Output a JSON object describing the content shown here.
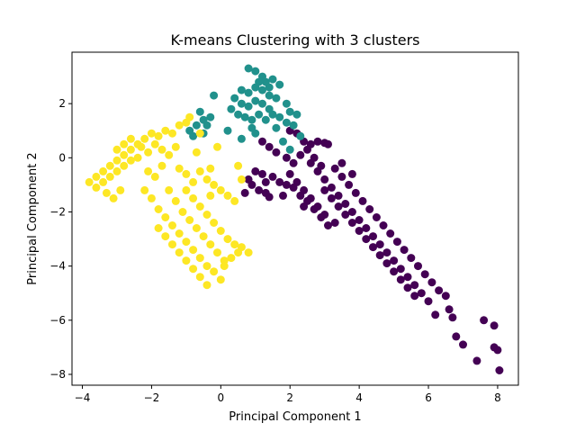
{
  "chart_data": {
    "type": "scatter",
    "title": "K-means Clustering with 3 clusters",
    "xlabel": "Principal Component 1",
    "ylabel": "Principal Component 2",
    "xlim": [
      -4.3,
      8.6
    ],
    "ylim": [
      -8.4,
      3.9
    ],
    "xticks": [
      -4,
      -2,
      0,
      2,
      4,
      6,
      8
    ],
    "yticks": [
      -8,
      -6,
      -4,
      -2,
      0,
      2
    ],
    "grid": false,
    "legend": "none",
    "series": [
      {
        "color": "#440154",
        "points": [
          [
            2.0,
            1.0
          ],
          [
            2.2,
            0.9
          ],
          [
            2.4,
            0.6
          ],
          [
            2.6,
            0.5
          ],
          [
            2.8,
            0.6
          ],
          [
            3.0,
            0.55
          ],
          [
            3.1,
            0.5
          ],
          [
            1.2,
            0.6
          ],
          [
            1.4,
            0.4
          ],
          [
            1.6,
            0.2
          ],
          [
            1.9,
            0.0
          ],
          [
            2.1,
            -0.2
          ],
          [
            2.3,
            0.1
          ],
          [
            1.0,
            -0.5
          ],
          [
            1.2,
            -0.6
          ],
          [
            1.5,
            -0.7
          ],
          [
            1.7,
            -0.9
          ],
          [
            1.9,
            -1.0
          ],
          [
            1.3,
            -0.9
          ],
          [
            0.8,
            -0.8
          ],
          [
            0.9,
            -1.0
          ],
          [
            1.1,
            -1.2
          ],
          [
            1.3,
            -1.3
          ],
          [
            1.4,
            -1.45
          ],
          [
            0.7,
            -1.3
          ],
          [
            2.0,
            -0.6
          ],
          [
            2.2,
            -0.9
          ],
          [
            2.4,
            -1.2
          ],
          [
            2.6,
            -1.5
          ],
          [
            2.8,
            -1.8
          ],
          [
            3.0,
            -2.1
          ],
          [
            2.3,
            -1.4
          ],
          [
            2.5,
            -1.6
          ],
          [
            2.7,
            -1.9
          ],
          [
            2.9,
            -2.2
          ],
          [
            3.1,
            -2.5
          ],
          [
            3.3,
            -2.4
          ],
          [
            2.6,
            -0.2
          ],
          [
            2.8,
            -0.5
          ],
          [
            3.0,
            -0.8
          ],
          [
            3.2,
            -1.1
          ],
          [
            3.4,
            -1.4
          ],
          [
            3.6,
            -1.7
          ],
          [
            3.8,
            -2.0
          ],
          [
            4.0,
            -2.3
          ],
          [
            4.2,
            -2.6
          ],
          [
            4.4,
            -2.9
          ],
          [
            4.6,
            -3.2
          ],
          [
            4.8,
            -3.5
          ],
          [
            5.0,
            -3.8
          ],
          [
            5.2,
            -4.1
          ],
          [
            5.4,
            -4.4
          ],
          [
            5.6,
            -4.7
          ],
          [
            5.8,
            -5.0
          ],
          [
            6.0,
            -5.3
          ],
          [
            3.3,
            -0.4
          ],
          [
            3.5,
            -0.7
          ],
          [
            3.7,
            -1.0
          ],
          [
            3.9,
            -1.3
          ],
          [
            4.1,
            -1.6
          ],
          [
            4.3,
            -1.9
          ],
          [
            4.5,
            -2.2
          ],
          [
            4.7,
            -2.5
          ],
          [
            4.9,
            -2.8
          ],
          [
            5.1,
            -3.1
          ],
          [
            5.3,
            -3.4
          ],
          [
            5.5,
            -3.7
          ],
          [
            5.7,
            -4.0
          ],
          [
            5.9,
            -4.3
          ],
          [
            6.1,
            -4.6
          ],
          [
            6.3,
            -4.9
          ],
          [
            6.5,
            -5.1
          ],
          [
            3.0,
            -1.2
          ],
          [
            3.2,
            -1.5
          ],
          [
            3.4,
            -1.8
          ],
          [
            3.6,
            -2.1
          ],
          [
            3.8,
            -2.4
          ],
          [
            4.0,
            -2.7
          ],
          [
            4.2,
            -3.0
          ],
          [
            4.4,
            -3.3
          ],
          [
            4.6,
            -3.6
          ],
          [
            4.8,
            -3.9
          ],
          [
            5.0,
            -4.2
          ],
          [
            5.2,
            -4.5
          ],
          [
            5.4,
            -4.8
          ],
          [
            5.6,
            -5.1
          ],
          [
            2.5,
            0.3
          ],
          [
            2.7,
            0.0
          ],
          [
            2.9,
            -0.3
          ],
          [
            3.5,
            -0.2
          ],
          [
            3.8,
            -0.6
          ],
          [
            2.1,
            -1.1
          ],
          [
            2.4,
            -1.8
          ],
          [
            1.8,
            -1.4
          ],
          [
            6.2,
            -5.8
          ],
          [
            6.7,
            -5.9
          ],
          [
            6.8,
            -6.6
          ],
          [
            7.0,
            -6.9
          ],
          [
            7.6,
            -6.0
          ],
          [
            7.9,
            -6.2
          ],
          [
            7.4,
            -7.5
          ],
          [
            7.9,
            -7.0
          ],
          [
            8.0,
            -7.1
          ],
          [
            8.05,
            -7.85
          ],
          [
            6.6,
            -5.6
          ]
        ]
      },
      {
        "color": "#21918c",
        "points": [
          [
            0.8,
            3.3
          ],
          [
            1.0,
            3.2
          ],
          [
            1.2,
            3.0
          ],
          [
            1.3,
            2.8
          ],
          [
            1.5,
            2.9
          ],
          [
            1.7,
            2.7
          ],
          [
            0.6,
            2.5
          ],
          [
            0.8,
            2.4
          ],
          [
            1.0,
            2.6
          ],
          [
            1.2,
            2.5
          ],
          [
            1.4,
            2.3
          ],
          [
            1.6,
            2.2
          ],
          [
            0.4,
            2.2
          ],
          [
            0.6,
            2.0
          ],
          [
            0.8,
            1.9
          ],
          [
            1.0,
            2.1
          ],
          [
            1.2,
            2.0
          ],
          [
            1.4,
            1.8
          ],
          [
            0.3,
            1.8
          ],
          [
            0.5,
            1.6
          ],
          [
            0.7,
            1.5
          ],
          [
            0.9,
            1.4
          ],
          [
            1.1,
            1.6
          ],
          [
            1.3,
            1.4
          ],
          [
            1.5,
            1.6
          ],
          [
            1.7,
            1.5
          ],
          [
            1.9,
            1.3
          ],
          [
            2.1,
            1.2
          ],
          [
            2.2,
            1.6
          ],
          [
            2.0,
            1.7
          ],
          [
            -0.3,
            1.5
          ],
          [
            -0.5,
            1.4
          ],
          [
            -0.7,
            1.2
          ],
          [
            -0.9,
            1.0
          ],
          [
            -0.4,
            1.2
          ],
          [
            -0.2,
            2.3
          ],
          [
            -0.6,
            1.7
          ],
          [
            -0.8,
            0.8
          ],
          [
            -0.5,
            0.9
          ],
          [
            1.0,
            0.9
          ],
          [
            0.6,
            0.7
          ],
          [
            1.8,
            0.6
          ],
          [
            2.0,
            0.3
          ],
          [
            1.6,
            1.1
          ],
          [
            2.3,
            0.8
          ],
          [
            1.9,
            2.0
          ],
          [
            1.1,
            2.8
          ],
          [
            1.4,
            2.6
          ],
          [
            0.9,
            1.1
          ],
          [
            0.2,
            1.0
          ]
        ]
      },
      {
        "color": "#fde725",
        "points": [
          [
            -3.8,
            -0.9
          ],
          [
            -3.6,
            -0.7
          ],
          [
            -3.4,
            -0.5
          ],
          [
            -3.2,
            -0.3
          ],
          [
            -3.0,
            -0.1
          ],
          [
            -2.8,
            0.1
          ],
          [
            -2.6,
            0.3
          ],
          [
            -2.4,
            0.5
          ],
          [
            -2.2,
            0.7
          ],
          [
            -2.0,
            0.9
          ],
          [
            -1.8,
            0.8
          ],
          [
            -1.6,
            1.0
          ],
          [
            -1.4,
            0.9
          ],
          [
            -1.2,
            1.2
          ],
          [
            -1.0,
            1.3
          ],
          [
            -0.9,
            1.5
          ],
          [
            -3.6,
            -1.1
          ],
          [
            -3.4,
            -0.9
          ],
          [
            -3.2,
            -0.7
          ],
          [
            -3.0,
            -0.5
          ],
          [
            -2.8,
            -0.3
          ],
          [
            -2.6,
            -0.1
          ],
          [
            -2.4,
            0.0
          ],
          [
            -3.3,
            -1.3
          ],
          [
            -3.1,
            -1.5
          ],
          [
            -2.9,
            -1.2
          ],
          [
            -3.0,
            0.3
          ],
          [
            -2.8,
            0.5
          ],
          [
            -2.6,
            0.7
          ],
          [
            -2.3,
            0.4
          ],
          [
            -2.1,
            0.2
          ],
          [
            -1.9,
            0.5
          ],
          [
            -1.7,
            0.3
          ],
          [
            -1.5,
            0.1
          ],
          [
            -1.3,
            0.4
          ],
          [
            -1.7,
            -0.3
          ],
          [
            -1.9,
            -0.7
          ],
          [
            -1.2,
            -0.4
          ],
          [
            -2.2,
            -1.2
          ],
          [
            -2.0,
            -1.5
          ],
          [
            -1.8,
            -1.9
          ],
          [
            -1.6,
            -2.2
          ],
          [
            -1.4,
            -2.5
          ],
          [
            -1.2,
            -2.8
          ],
          [
            -1.0,
            -3.1
          ],
          [
            -0.8,
            -3.4
          ],
          [
            -0.6,
            -3.7
          ],
          [
            -0.4,
            -4.0
          ],
          [
            -0.2,
            -4.2
          ],
          [
            0.0,
            -4.5
          ],
          [
            0.1,
            -4.0
          ],
          [
            0.3,
            -3.7
          ],
          [
            0.5,
            -3.5
          ],
          [
            -1.8,
            -2.6
          ],
          [
            -1.6,
            -2.9
          ],
          [
            -1.4,
            -3.2
          ],
          [
            -1.2,
            -3.5
          ],
          [
            -1.0,
            -3.8
          ],
          [
            -0.8,
            -4.1
          ],
          [
            -0.6,
            -4.4
          ],
          [
            -0.4,
            -4.7
          ],
          [
            -1.0,
            -1.2
          ],
          [
            -0.8,
            -1.5
          ],
          [
            -0.6,
            -1.8
          ],
          [
            -0.4,
            -2.1
          ],
          [
            -0.2,
            -2.4
          ],
          [
            0.0,
            -2.7
          ],
          [
            0.2,
            -3.0
          ],
          [
            0.4,
            -3.2
          ],
          [
            0.6,
            -3.3
          ],
          [
            0.8,
            -3.5
          ],
          [
            -1.1,
            -2.0
          ],
          [
            -0.9,
            -2.3
          ],
          [
            -0.7,
            -2.6
          ],
          [
            -0.5,
            -2.9
          ],
          [
            -0.3,
            -3.2
          ],
          [
            -0.1,
            -3.5
          ],
          [
            0.1,
            -3.8
          ],
          [
            -1.0,
            -0.6
          ],
          [
            -0.8,
            -0.9
          ],
          [
            -0.6,
            -0.5
          ],
          [
            -0.4,
            -0.8
          ],
          [
            -0.2,
            -1.0
          ],
          [
            0.0,
            -1.2
          ],
          [
            0.2,
            -1.4
          ],
          [
            0.4,
            -1.6
          ],
          [
            0.5,
            -0.3
          ],
          [
            0.6,
            -0.8
          ],
          [
            -0.3,
            -0.4
          ],
          [
            -0.1,
            0.4
          ],
          [
            -0.6,
            0.9
          ],
          [
            -2.1,
            -0.5
          ],
          [
            -1.5,
            -1.2
          ],
          [
            -1.3,
            -1.6
          ],
          [
            -0.7,
            0.2
          ],
          [
            -0.3,
            -1.4
          ]
        ]
      }
    ]
  }
}
